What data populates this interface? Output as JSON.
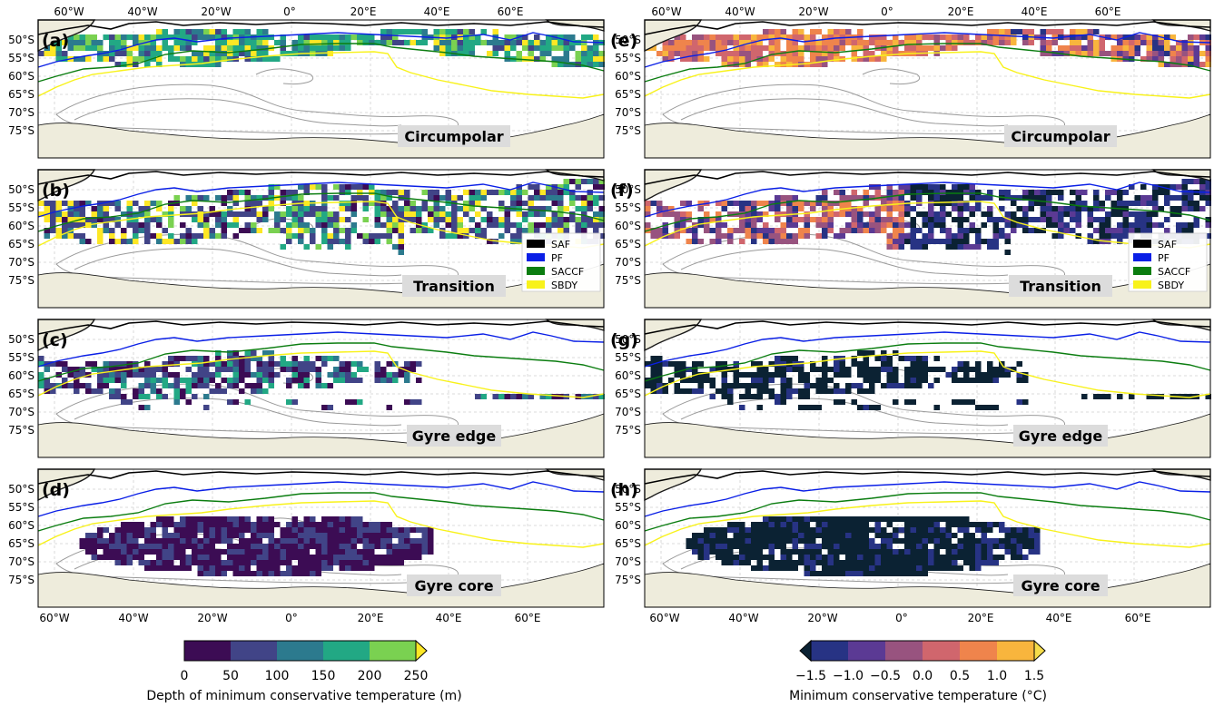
{
  "lon_labels": [
    "60°W",
    "40°W",
    "20°W",
    "0°",
    "20°E",
    "40°E",
    "60°E"
  ],
  "lat_labels": [
    "50°S",
    "55°S",
    "60°S",
    "65°S",
    "70°S",
    "75°S"
  ],
  "panel_letters": [
    "(a)",
    "(b)",
    "(c)",
    "(d)",
    "(e)",
    "(f)",
    "(g)",
    "(h)"
  ],
  "regime_labels": [
    "Circumpolar",
    "Transition",
    "Gyre edge",
    "Gyre core"
  ],
  "legend": {
    "entries": [
      {
        "name": "SAF",
        "color": "#000000"
      },
      {
        "name": "PF",
        "color": "#0a1fe6"
      },
      {
        "name": "SACCF",
        "color": "#0b7d10"
      },
      {
        "name": "SBDY",
        "color": "#f8f21a"
      }
    ]
  },
  "colorbar_depth": {
    "label": "Depth of minimum conservative temperature (m)",
    "ticks": [
      "0",
      "50",
      "100",
      "150",
      "200",
      "250"
    ],
    "colors": [
      "#3c0c54",
      "#414487",
      "#2c7a8e",
      "#22a884",
      "#7ad151",
      "#fde725"
    ]
  },
  "colorbar_temp": {
    "label": "Minimum conservative temperature (°C)",
    "ticks": [
      "−1.5",
      "−1.0",
      "−0.5",
      "0.0",
      "0.5",
      "1.0",
      "1.5"
    ],
    "colors": [
      "#0b2233",
      "#273384",
      "#5b3a94",
      "#98537f",
      "#d0666d",
      "#ef844c",
      "#f8b53d",
      "#f5dc4a"
    ]
  },
  "map_colors": {
    "land": "#eeecdc",
    "land_edge": "#1a1a1a",
    "bathy": "#9a9a9a",
    "grid": "#d0d0d0",
    "label_box": "#dcdcdc"
  }
}
